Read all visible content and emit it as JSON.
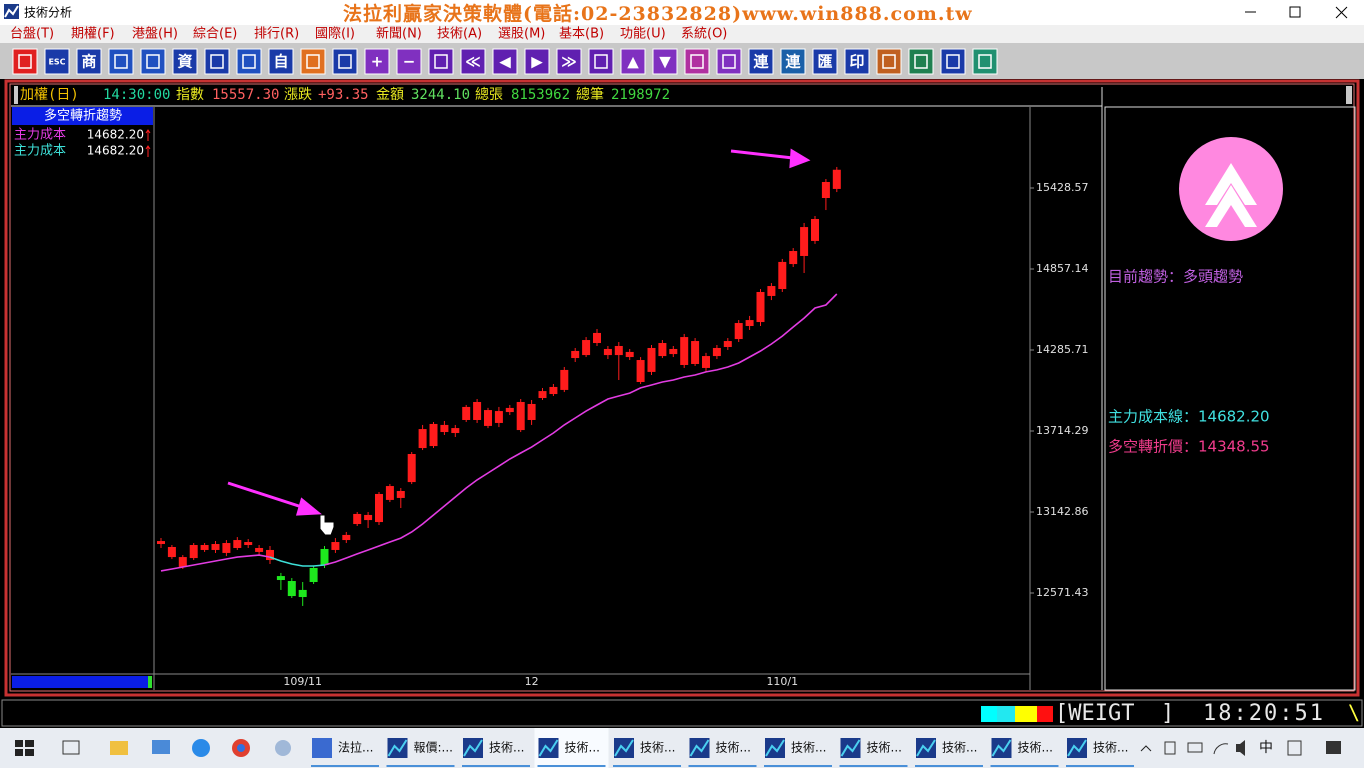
{
  "window": {
    "title": "技術分析",
    "banner": "法拉利贏家決策軟體(電話:02-23832828)www.win888.com.tw"
  },
  "menu": [
    "台盤(T)",
    "期權(F)",
    "港盤(H)",
    "綜合(E)",
    "排行(R)",
    "國際(I)",
    "新聞(N)",
    "技術(A)",
    "選股(M)",
    "基本(B)",
    "功能(U)",
    "系統(O)"
  ],
  "toolbar": [
    null,
    "ESC",
    "商",
    null,
    null,
    "資",
    null,
    null,
    "自",
    null,
    null,
    "+",
    "−",
    null,
    "≪",
    "◀",
    "▶",
    "≫",
    null,
    "▲",
    "▼",
    null,
    null,
    "連",
    "連",
    "匯",
    "印",
    null,
    null,
    null,
    null
  ],
  "quote": {
    "name": "加權(日)",
    "time": "14:30:00",
    "index_label": "指數",
    "index": "15557.30",
    "change_label": "漲跌",
    "change": "+93.35",
    "amount_label": "金額",
    "amount": "3244.10",
    "volume_label": "總張",
    "volume": "8153962",
    "trades_label": "總筆",
    "trades": "2198972"
  },
  "indicator": {
    "title": "多空轉折趨勢"
  },
  "chart_data": {
    "type": "candlestick",
    "categories": [
      null,
      null,
      null,
      null,
      null,
      null,
      null,
      null,
      null,
      null,
      null,
      null,
      null,
      "109/11",
      null,
      null,
      null,
      null,
      null,
      null,
      null,
      null,
      null,
      null,
      null,
      null,
      null,
      null,
      null,
      null,
      null,
      null,
      null,
      null,
      "12",
      null,
      null,
      null,
      null,
      null,
      null,
      null,
      null,
      null,
      null,
      null,
      null,
      null,
      null,
      null,
      null,
      null,
      null,
      null,
      null,
      null,
      null,
      "110/1",
      null,
      null,
      null,
      null,
      null
    ],
    "open": [
      12917,
      12825,
      12755,
      12818,
      12875,
      12875,
      12854,
      12889,
      12910,
      12861,
      12804,
      12691,
      12656,
      12593,
      12748,
      12882,
      12875,
      12945,
      13058,
      13086,
      13072,
      13228,
      13242,
      13354,
      13594,
      13608,
      13707,
      13700,
      13792,
      13792,
      13750,
      13771,
      13848,
      13721,
      13792,
      13947,
      13975,
      14004,
      14229,
      14250,
      14335,
      14250,
      14250,
      14236,
      14060,
      14131,
      14243,
      14257,
      14180,
      14187,
      14159,
      14243,
      14307,
      14363,
      14455,
      14483,
      14667,
      14716,
      14892,
      14949,
      15055,
      15358,
      15422
    ],
    "high": [
      12959,
      12910,
      12839,
      12924,
      12924,
      12938,
      12945,
      12966,
      12952,
      12910,
      12903,
      12713,
      12677,
      12649,
      12762,
      12903,
      12959,
      13002,
      13143,
      13143,
      13284,
      13340,
      13312,
      13566,
      13757,
      13778,
      13785,
      13757,
      13898,
      13940,
      13877,
      13884,
      13898,
      13940,
      13933,
      14018,
      14046,
      14166,
      14300,
      14377,
      14434,
      14314,
      14342,
      14293,
      14236,
      14321,
      14356,
      14314,
      14399,
      14370,
      14265,
      14321,
      14370,
      14497,
      14526,
      14716,
      14758,
      14928,
      15005,
      15182,
      15231,
      15492,
      15577
    ],
    "low": [
      12889,
      12811,
      12741,
      12804,
      12861,
      12854,
      12832,
      12875,
      12889,
      12839,
      12776,
      12593,
      12536,
      12480,
      12635,
      12748,
      12854,
      12924,
      13044,
      13030,
      13051,
      13213,
      13171,
      13340,
      13580,
      13594,
      13686,
      13672,
      13778,
      13771,
      13735,
      13742,
      13827,
      13707,
      13757,
      13933,
      13961,
      13989,
      14201,
      14236,
      14314,
      14222,
      14074,
      14215,
      14046,
      14109,
      14229,
      14236,
      14159,
      14173,
      14131,
      14222,
      14286,
      14342,
      14427,
      14455,
      14638,
      14695,
      14871,
      14829,
      15034,
      15273,
      15400
    ],
    "close": [
      12938,
      12896,
      12825,
      12910,
      12910,
      12917,
      12924,
      12945,
      12931,
      12889,
      12875,
      12663,
      12550,
      12543,
      12649,
      12769,
      12931,
      12981,
      13129,
      13122,
      13270,
      13326,
      13291,
      13552,
      13728,
      13764,
      13757,
      13735,
      13884,
      13919,
      13862,
      13855,
      13877,
      13919,
      13905,
      13996,
      14025,
      14145,
      14279,
      14356,
      14406,
      14293,
      14314,
      14272,
      14215,
      14300,
      14335,
      14293,
      14377,
      14349,
      14243,
      14300,
      14349,
      14476,
      14497,
      14695,
      14737,
      14907,
      14984,
      15153,
      15210,
      15471,
      15557.3
    ],
    "up_color": "#ff1c1c",
    "down_color": "#1ee81e",
    "lines": [
      {
        "name": "主力成本",
        "color": "#e23ce2",
        "value_label": "14682.20",
        "values": [
          12727,
          12741,
          12755,
          12769,
          12783,
          12797,
          12811,
          12825,
          12832,
          12839,
          12825,
          null,
          null,
          null,
          null,
          12769,
          12790,
          12818,
          12847,
          12875,
          12903,
          12931,
          12959,
          13002,
          13058,
          13122,
          13185,
          13249,
          13312,
          13369,
          13418,
          13467,
          13517,
          13559,
          13601,
          13651,
          13700,
          13757,
          13806,
          13855,
          13898,
          13940,
          13961,
          13982,
          14018,
          14039,
          14060,
          14074,
          14095,
          14109,
          14131,
          14145,
          14166,
          14194,
          14236,
          14279,
          14328,
          14384,
          14448,
          14511,
          14582,
          14603,
          14681
        ]
      },
      {
        "name": "主力成本",
        "color": "#3ee0d8",
        "value_label": "14682.20",
        "values": [
          null,
          null,
          null,
          null,
          null,
          null,
          null,
          null,
          null,
          null,
          12825,
          12797,
          12776,
          12762,
          12762,
          12769,
          null,
          null,
          null,
          null,
          null,
          null,
          null,
          null,
          null,
          null,
          null,
          null,
          null,
          null,
          null,
          null,
          null,
          null,
          null,
          null,
          null,
          null,
          null,
          null,
          null,
          null,
          null,
          null,
          null,
          null,
          null,
          null,
          null,
          null,
          null,
          null,
          null,
          null,
          null,
          null,
          null,
          null,
          null,
          null,
          null,
          null,
          null
        ]
      }
    ],
    "ylim": [
      12000,
      16000
    ],
    "yticks": [
      12571.43,
      13142.86,
      13714.29,
      14285.71,
      14857.14,
      15428.57
    ]
  },
  "trend_panel": {
    "trend": "目前趨勢：多頭趨勢",
    "cost_line": "主力成本線：14682.20",
    "pivot": "多空轉折價：14348.55"
  },
  "status": {
    "code": "[WEIGT  ]",
    "time": "18:20:51",
    "spinner": "\\"
  },
  "taskbar": {
    "items": [
      "法拉...",
      "報價:...",
      "技術...",
      "技術...",
      "技術...",
      "技術...",
      "技術...",
      "技術...",
      "技術...",
      "技術...",
      "技術..."
    ],
    "ime": "中"
  }
}
